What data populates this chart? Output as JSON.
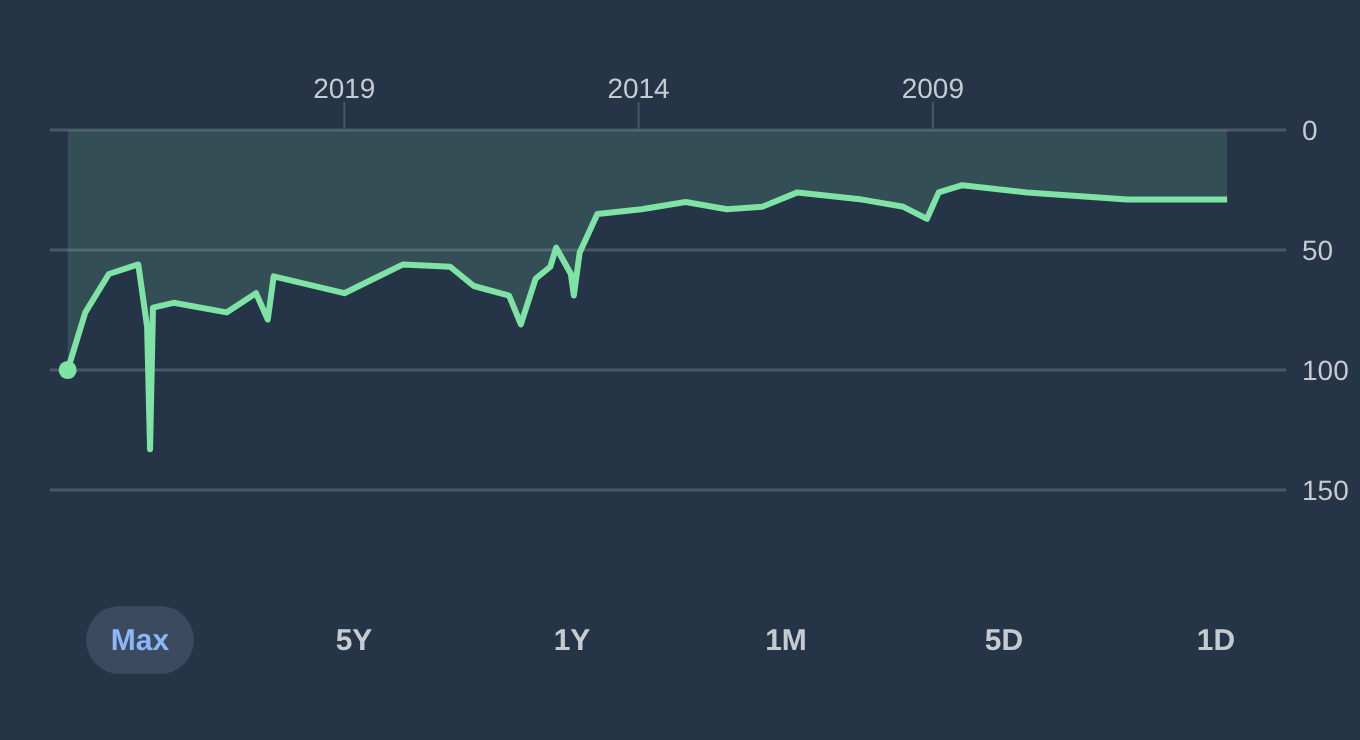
{
  "chart_data": {
    "type": "area",
    "x": [
      2004.0,
      2005.7,
      2007.4,
      2008.5,
      2008.9,
      2009.1,
      2009.5,
      2010.2,
      2011.3,
      2011.9,
      2012.5,
      2013.2,
      2013.95,
      2014.7,
      2015.0,
      2015.1,
      2015.15,
      2015.4,
      2015.5,
      2015.75,
      2016.0,
      2016.2,
      2016.8,
      2017.2,
      2018.0,
      2018.5,
      2019.0,
      2020.2,
      2020.3,
      2020.5,
      2021.0,
      2021.9,
      2022.25,
      2022.3,
      2022.35,
      2022.5,
      2023.0,
      2023.4,
      2023.7
    ],
    "series": [
      {
        "color": "#7fe3a6",
        "values": [
          29,
          29,
          26,
          23,
          26,
          37,
          32,
          29,
          26,
          32,
          33,
          30,
          33,
          35,
          51,
          69,
          60,
          49,
          57,
          62,
          81,
          69,
          65,
          57,
          56,
          62,
          68,
          61,
          79,
          68,
          76,
          72,
          74,
          133,
          82,
          56,
          60,
          76,
          100
        ]
      },
      {
        "type": "scatter",
        "color": "#7fe3a6",
        "marker": "circle",
        "x": [
          2023.7
        ],
        "values": [
          100
        ]
      }
    ],
    "xlim": [
      2024,
      2003
    ],
    "xticks": [
      2019,
      2014,
      2009
    ],
    "ylim": [
      150,
      0
    ],
    "yticks": [
      150,
      100,
      50,
      0
    ],
    "grid": "y",
    "marker": "none",
    "legend": false,
    "annotations": [
      "Max",
      "5Y",
      "1Y",
      "1M",
      "5D",
      "1D"
    ]
  }
}
